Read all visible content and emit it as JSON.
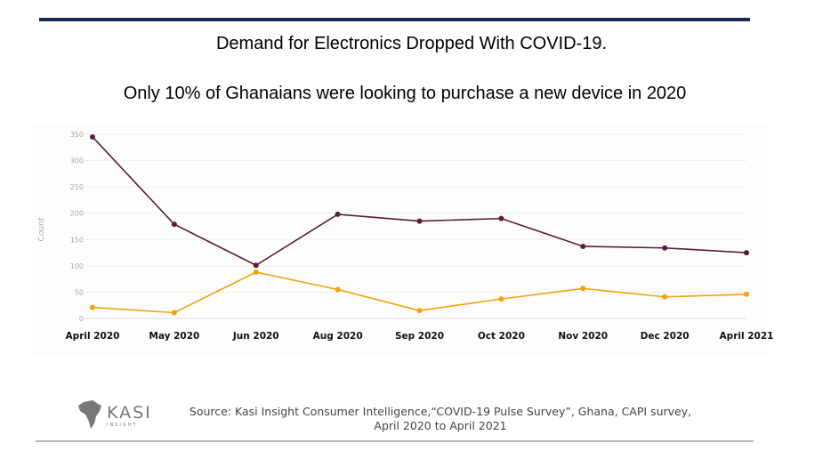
{
  "header": {
    "title": "Demand for Electronics Dropped With COVID-19.",
    "subtitle": "Only 10% of Ghanaians were looking to purchase a new device in 2020"
  },
  "chart_data": {
    "type": "line",
    "categories": [
      "April 2020",
      "May 2020",
      "Jun 2020",
      "Aug 2020",
      "Sep 2020",
      "Oct 2020",
      "Nov 2020",
      "Dec 2020",
      "April 2021"
    ],
    "series": [
      {
        "color": "#5c1a3c",
        "values": [
          345,
          179,
          101,
          198,
          185,
          190,
          137,
          134,
          125
        ]
      },
      {
        "color": "#f2a20c",
        "values": [
          21,
          11,
          88,
          55,
          15,
          37,
          57,
          41,
          46
        ]
      }
    ],
    "ylabel": "Count",
    "ylim": [
      0,
      350
    ],
    "yticks": [
      0,
      50,
      100,
      150,
      200,
      250,
      300,
      350
    ],
    "grid": true
  },
  "footer": {
    "logo_text": "KASI",
    "logo_subtext": "INSIGHT",
    "source_line1": "Source: Kasi Insight Consumer Intelligence,“COVID-19 Pulse Survey”, Ghana, CAPI survey,",
    "source_line2": "April  2020 to April 2021"
  }
}
